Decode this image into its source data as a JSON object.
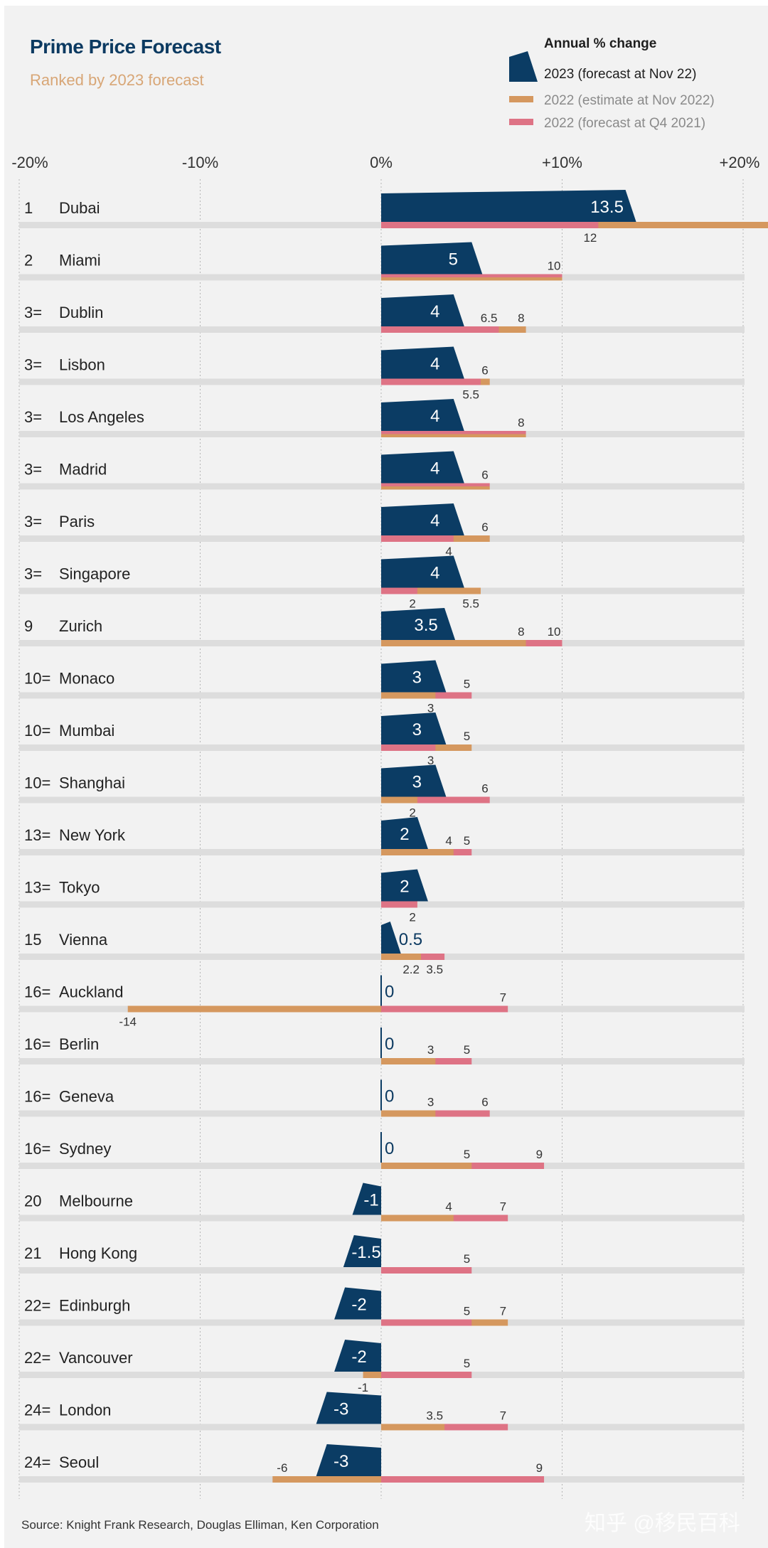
{
  "colors": {
    "navy": "#0b3c64",
    "estimate_2022": "#d5985f",
    "forecast_2022": "#de7385",
    "band": "#dddddd",
    "background": "#f2f2f2",
    "gridline": "#b5b5b5"
  },
  "footer": {
    "source": "Source: Knight Frank Research, Douglas Elliman, Ken Corporation",
    "watermark": "知乎 @移民百科"
  },
  "chart_data": {
    "type": "bar",
    "orientation": "horizontal",
    "title": "Prime Price Forecast",
    "subtitle": "Ranked by 2023 forecast",
    "legend": {
      "heading": "Annual % change",
      "position": "top-right",
      "entries": [
        {
          "key": "v2023",
          "label": "2023 (forecast at Nov 22)"
        },
        {
          "key": "est",
          "label": "2022 (estimate at Nov 2022)"
        },
        {
          "key": "fc",
          "label": "2022 (forecast at Q4 2021)"
        }
      ]
    },
    "xlim": [
      -20,
      20
    ],
    "x_ticks": [
      -20,
      -10,
      0,
      10,
      20
    ],
    "x_tick_labels": [
      "-20%",
      "-10%",
      "0%",
      "+10%",
      "+20%"
    ],
    "grid": true,
    "rows": [
      {
        "rank": "1",
        "city": "Dubai",
        "v2023": 13.5,
        "est": null,
        "est_off_scale": true,
        "fc": 12,
        "est_label": "none",
        "fc_label": "below"
      },
      {
        "rank": "2",
        "city": "Miami",
        "v2023": 5,
        "est": 10,
        "fc": 10,
        "est_label": "none",
        "fc_label": "above"
      },
      {
        "rank": "3=",
        "city": "Dublin",
        "v2023": 4,
        "est": 8,
        "fc": 6.5,
        "est_label": "above",
        "fc_label": "above"
      },
      {
        "rank": "3=",
        "city": "Lisbon",
        "v2023": 4,
        "est": 6,
        "fc": 5.5,
        "est_label": "above",
        "fc_label": "below"
      },
      {
        "rank": "3=",
        "city": "Los Angeles",
        "v2023": 4,
        "est": 8,
        "fc": 8,
        "est_label": "none",
        "fc_label": "above"
      },
      {
        "rank": "3=",
        "city": "Madrid",
        "v2023": 4,
        "est": 6,
        "fc": 6,
        "est_label": "none",
        "fc_label": "above"
      },
      {
        "rank": "3=",
        "city": "Paris",
        "v2023": 4,
        "est": 6,
        "fc": 4,
        "est_label": "above",
        "fc_label": "below"
      },
      {
        "rank": "3=",
        "city": "Singapore",
        "v2023": 4,
        "est": 5.5,
        "fc": 2,
        "est_label": "below",
        "fc_label": "below"
      },
      {
        "rank": "9",
        "city": "Zurich",
        "v2023": 3.5,
        "est": 8,
        "fc": 10,
        "est_label": "above",
        "fc_label": "above"
      },
      {
        "rank": "10=",
        "city": "Monaco",
        "v2023": 3,
        "est": 3,
        "fc": 5,
        "est_label": "below",
        "fc_label": "above"
      },
      {
        "rank": "10=",
        "city": "Mumbai",
        "v2023": 3,
        "est": 5,
        "fc": 3,
        "est_label": "above",
        "fc_label": "below"
      },
      {
        "rank": "10=",
        "city": "Shanghai",
        "v2023": 3,
        "est": 2,
        "fc": 6,
        "est_label": "below",
        "fc_label": "above"
      },
      {
        "rank": "13=",
        "city": "New York",
        "v2023": 2,
        "est": 4,
        "fc": 5,
        "est_label": "above",
        "fc_label": "above"
      },
      {
        "rank": "13=",
        "city": "Tokyo",
        "v2023": 2,
        "est": null,
        "fc": 2,
        "est_label": "none",
        "fc_label": "below"
      },
      {
        "rank": "15",
        "city": "Vienna",
        "v2023": 0.5,
        "est": 2.2,
        "fc": 3.5,
        "est_label": "below",
        "fc_label": "below"
      },
      {
        "rank": "16=",
        "city": "Auckland",
        "v2023": 0,
        "est": -14,
        "fc": 7,
        "est_label": "below",
        "fc_label": "above"
      },
      {
        "rank": "16=",
        "city": "Berlin",
        "v2023": 0,
        "est": 3,
        "fc": 5,
        "est_label": "above",
        "fc_label": "above"
      },
      {
        "rank": "16=",
        "city": "Geneva",
        "v2023": 0,
        "est": 3,
        "fc": 6,
        "est_label": "above",
        "fc_label": "above"
      },
      {
        "rank": "16=",
        "city": "Sydney",
        "v2023": 0,
        "est": 5,
        "fc": 9,
        "est_label": "above",
        "fc_label": "above"
      },
      {
        "rank": "20",
        "city": "Melbourne",
        "v2023": -1,
        "est": 4,
        "fc": 7,
        "est_label": "above",
        "fc_label": "above"
      },
      {
        "rank": "21",
        "city": "Hong Kong",
        "v2023": -1.5,
        "est": null,
        "fc": 5,
        "est_label": "none",
        "fc_label": "above"
      },
      {
        "rank": "22=",
        "city": "Edinburgh",
        "v2023": -2,
        "est": 7,
        "fc": 5,
        "est_label": "above",
        "fc_label": "above"
      },
      {
        "rank": "22=",
        "city": "Vancouver",
        "v2023": -2,
        "est": -1,
        "fc": 5,
        "est_label": "below",
        "fc_label": "above"
      },
      {
        "rank": "24=",
        "city": "London",
        "v2023": -3,
        "est": 3.5,
        "fc": 7,
        "est_label": "above",
        "fc_label": "above"
      },
      {
        "rank": "24=",
        "city": "Seoul",
        "v2023": -3,
        "est": -6,
        "fc": 9,
        "est_label": "above",
        "fc_label": "above"
      }
    ]
  }
}
